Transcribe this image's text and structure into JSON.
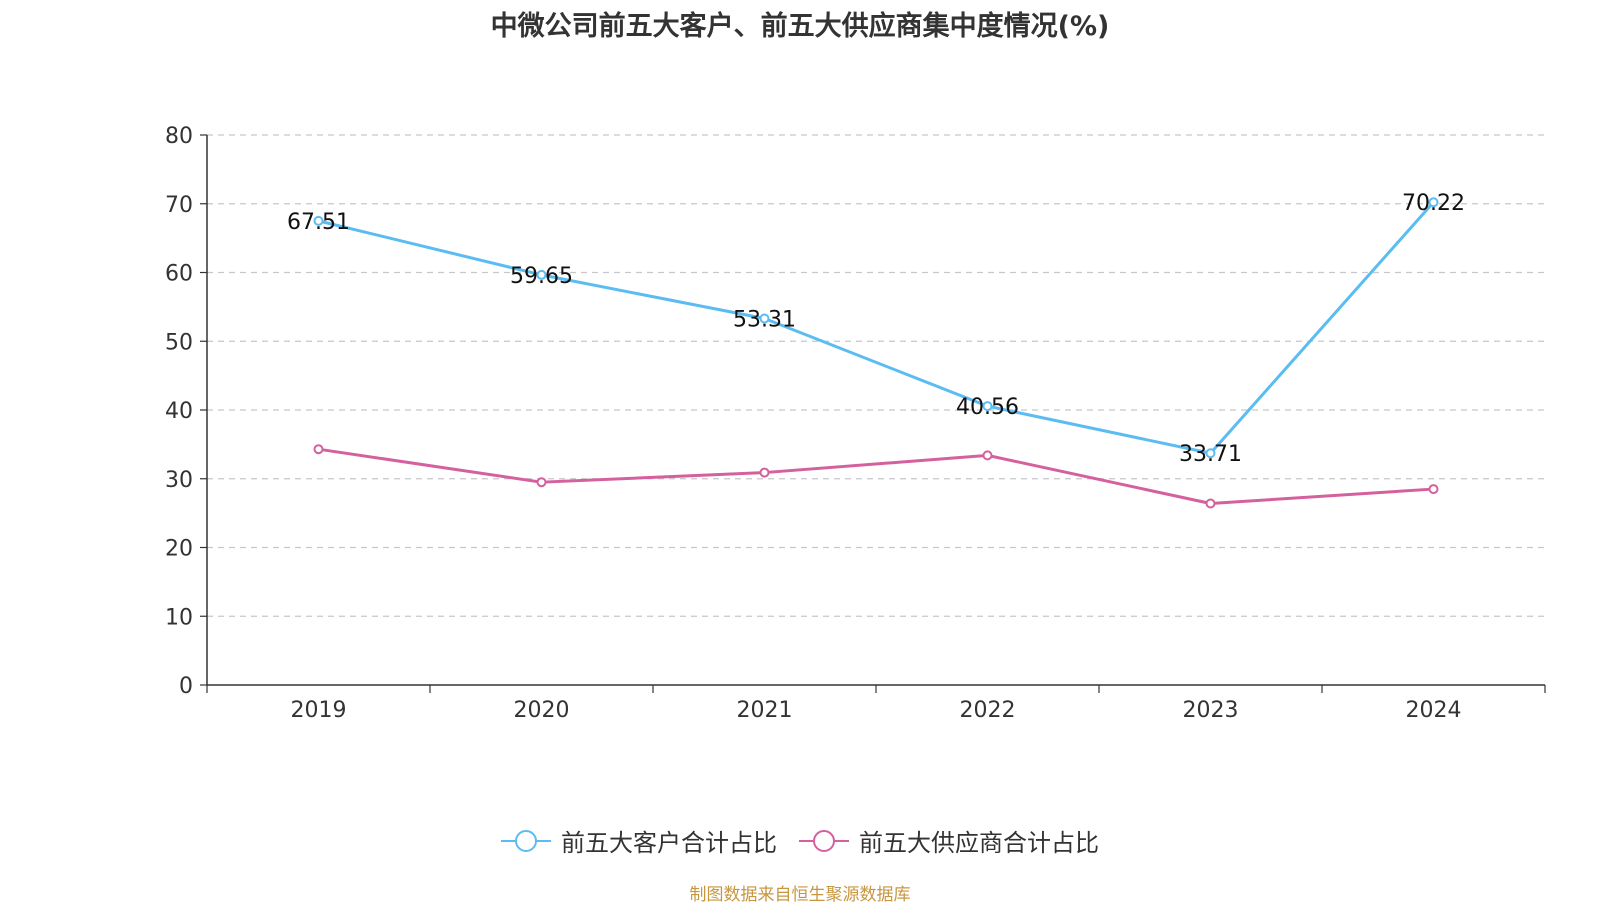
{
  "chart_data": {
    "type": "line",
    "title": "中微公司前五大客户、前五大供应商集中度情况(%)",
    "categories": [
      "2019",
      "2020",
      "2021",
      "2022",
      "2023",
      "2024"
    ],
    "series": [
      {
        "name": "前五大客户合计占比",
        "color": "#5bbcf2",
        "values": [
          67.51,
          59.65,
          53.31,
          40.56,
          33.71,
          70.22
        ],
        "show_labels": true
      },
      {
        "name": "前五大供应商合计占比",
        "color": "#d4609e",
        "values": [
          34.3,
          29.5,
          30.9,
          33.4,
          26.4,
          28.5
        ],
        "show_labels": false
      }
    ],
    "ylim": [
      0,
      80
    ],
    "yticks": [
      0,
      10,
      20,
      30,
      40,
      50,
      60,
      70,
      80
    ],
    "grid": true,
    "legend_position": "bottom"
  },
  "source": "制图数据来自恒生聚源数据库"
}
